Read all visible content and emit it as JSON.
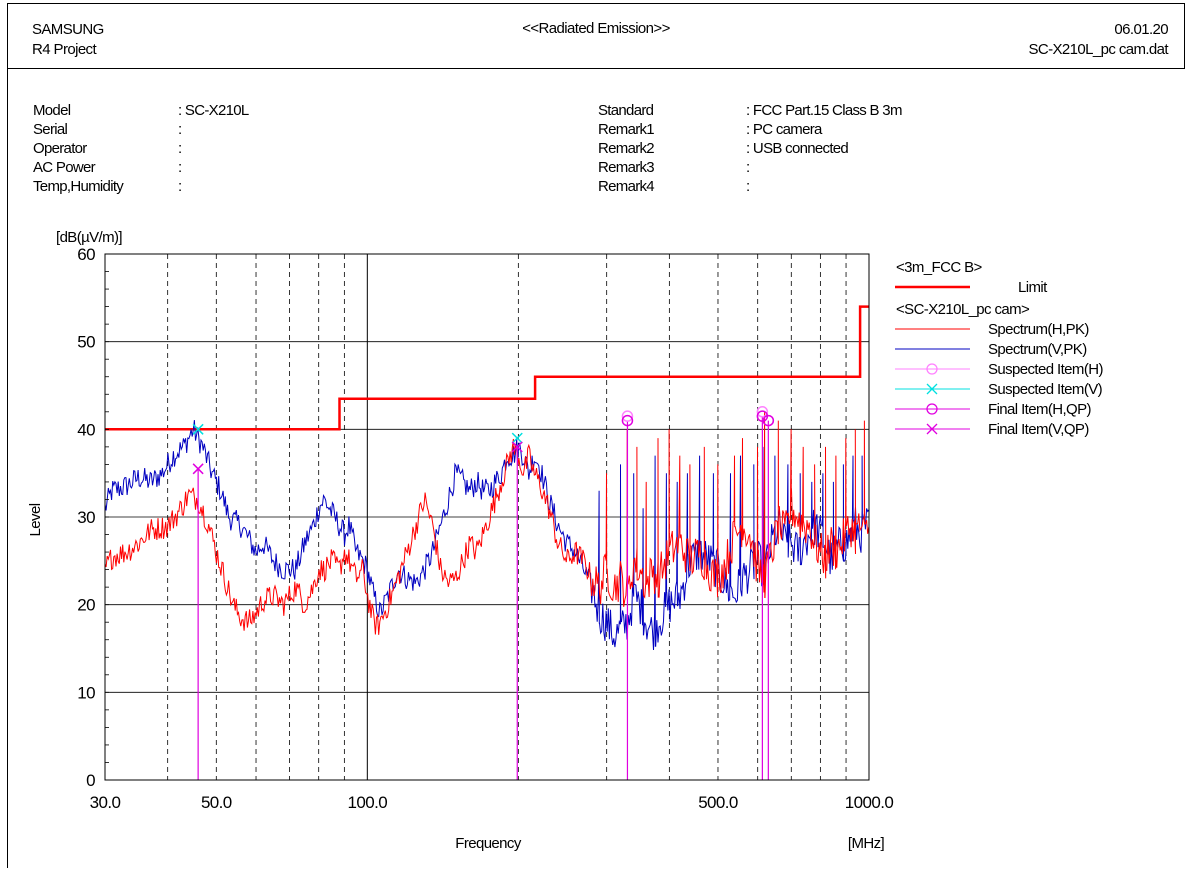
{
  "header": {
    "company": "SAMSUNG",
    "project": "R4 Project",
    "title": "<<Radiated Emission>>",
    "date": "06.01.20",
    "filename": "SC-X210L_pc cam.dat"
  },
  "info_left": [
    {
      "label": "Model",
      "value": ": SC-X210L"
    },
    {
      "label": "Serial",
      "value": ":"
    },
    {
      "label": "Operator",
      "value": ":"
    },
    {
      "label": "AC Power",
      "value": ":"
    },
    {
      "label": "Temp,Humidity",
      "value": ":"
    }
  ],
  "info_right": [
    {
      "label": "Standard",
      "value": ": FCC Part.15 Class B 3m"
    },
    {
      "label": "Remark1",
      "value": ": PC camera"
    },
    {
      "label": "Remark2",
      "value": ": USB connected"
    },
    {
      "label": "Remark3",
      "value": ":"
    },
    {
      "label": "Remark4",
      "value": ":"
    }
  ],
  "chart_data": {
    "type": "line",
    "title": "",
    "xlabel": "Frequency",
    "xunit": "[MHz]",
    "ylabel": "Level",
    "yunit": "[dB(µV/m)]",
    "xscale": "log",
    "xlim": [
      30,
      1000
    ],
    "ylim": [
      0,
      60
    ],
    "xticks": [
      {
        "v": 30,
        "label": "30.0"
      },
      {
        "v": 50,
        "label": "50.0"
      },
      {
        "v": 100,
        "label": "100.0"
      },
      {
        "v": 500,
        "label": "500.0"
      },
      {
        "v": 1000,
        "label": "1000.0"
      }
    ],
    "yticks": [
      {
        "v": 0,
        "label": "0"
      },
      {
        "v": 10,
        "label": "10"
      },
      {
        "v": 20,
        "label": "20"
      },
      {
        "v": 30,
        "label": "30"
      },
      {
        "v": 40,
        "label": "40"
      },
      {
        "v": 50,
        "label": "50"
      },
      {
        "v": 60,
        "label": "60"
      }
    ],
    "grid": true,
    "legend_position": "right",
    "legend_groups": [
      {
        "title": "<3m_FCC B>",
        "entries": [
          "Limit"
        ]
      },
      {
        "title": "<SC-X210L_pc cam>",
        "entries": [
          "Spectrum(H,PK)",
          "Spectrum(V,PK)",
          "Suspected Item(H)",
          "Suspected Item(V)",
          "Final Item(H,QP)",
          "Final Item(V,QP)"
        ]
      }
    ],
    "colors": {
      "limit": "#ff0000",
      "spectrum_h": "#ff0000",
      "spectrum_v": "#0000c0",
      "suspected_h": "#ff80ff",
      "suspected_v": "#00e0e0",
      "final_h": "#e000e0",
      "final_v": "#e000e0"
    },
    "limit": [
      [
        30,
        40
      ],
      [
        88,
        40
      ],
      [
        88,
        43.5
      ],
      [
        216,
        43.5
      ],
      [
        216,
        46
      ],
      [
        960,
        46
      ],
      [
        960,
        54
      ],
      [
        1000,
        54
      ]
    ],
    "spectrum_h": [
      [
        30,
        24
      ],
      [
        31,
        25.5
      ],
      [
        33,
        26
      ],
      [
        35,
        27
      ],
      [
        37,
        28.5
      ],
      [
        40,
        29
      ],
      [
        42,
        30.5
      ],
      [
        44,
        32.5
      ],
      [
        46,
        32
      ],
      [
        48,
        29.5
      ],
      [
        50,
        26
      ],
      [
        52,
        23
      ],
      [
        54,
        20
      ],
      [
        56,
        18.5
      ],
      [
        58,
        18
      ],
      [
        60,
        19
      ],
      [
        62,
        20.5
      ],
      [
        65,
        21
      ],
      [
        68,
        20
      ],
      [
        70,
        21
      ],
      [
        72,
        22
      ],
      [
        75,
        20
      ],
      [
        78,
        22
      ],
      [
        80,
        24
      ],
      [
        82,
        24
      ],
      [
        85,
        25
      ],
      [
        88,
        24
      ],
      [
        90,
        26
      ],
      [
        92,
        25
      ],
      [
        95,
        23
      ],
      [
        98,
        24
      ],
      [
        100,
        21
      ],
      [
        103,
        18
      ],
      [
        105,
        17.5
      ],
      [
        110,
        20
      ],
      [
        115,
        23
      ],
      [
        120,
        26
      ],
      [
        125,
        29
      ],
      [
        130,
        32
      ],
      [
        135,
        29
      ],
      [
        140,
        24
      ],
      [
        145,
        22.5
      ],
      [
        150,
        23
      ],
      [
        155,
        25
      ],
      [
        160,
        27
      ],
      [
        165,
        26
      ],
      [
        170,
        28
      ],
      [
        175,
        30
      ],
      [
        180,
        32
      ],
      [
        185,
        34
      ],
      [
        190,
        36
      ],
      [
        195,
        38
      ],
      [
        200,
        37
      ],
      [
        205,
        35
      ],
      [
        210,
        37
      ],
      [
        215,
        35
      ],
      [
        220,
        34
      ],
      [
        230,
        31
      ],
      [
        240,
        27
      ],
      [
        250,
        25
      ],
      [
        260,
        26
      ],
      [
        270,
        25
      ],
      [
        280,
        23
      ],
      [
        290,
        22
      ],
      [
        300,
        24
      ],
      [
        310,
        22
      ],
      [
        320,
        23
      ],
      [
        330,
        21
      ],
      [
        340,
        25
      ],
      [
        350,
        24
      ],
      [
        360,
        22
      ],
      [
        370,
        24
      ],
      [
        380,
        23
      ],
      [
        400,
        26
      ],
      [
        420,
        27
      ],
      [
        440,
        25
      ],
      [
        460,
        26
      ],
      [
        480,
        24
      ],
      [
        500,
        23
      ],
      [
        520,
        25
      ],
      [
        540,
        28
      ],
      [
        560,
        29
      ],
      [
        580,
        28
      ],
      [
        600,
        24
      ],
      [
        620,
        23
      ],
      [
        640,
        26
      ],
      [
        660,
        29
      ],
      [
        680,
        28
      ],
      [
        700,
        31
      ],
      [
        720,
        30
      ],
      [
        740,
        29
      ],
      [
        760,
        29
      ],
      [
        780,
        27
      ],
      [
        800,
        26
      ],
      [
        820,
        25
      ],
      [
        840,
        27
      ],
      [
        860,
        26
      ],
      [
        880,
        27
      ],
      [
        900,
        28
      ],
      [
        920,
        29
      ],
      [
        940,
        28
      ],
      [
        960,
        29
      ],
      [
        980,
        28
      ],
      [
        1000,
        29
      ]
    ],
    "spectrum_v": [
      [
        30,
        31
      ],
      [
        31,
        33
      ],
      [
        33,
        33.5
      ],
      [
        35,
        34.5
      ],
      [
        37,
        34
      ],
      [
        39,
        35
      ],
      [
        41,
        37
      ],
      [
        43,
        38
      ],
      [
        45,
        40
      ],
      [
        46,
        39
      ],
      [
        47,
        38
      ],
      [
        49,
        35
      ],
      [
        51,
        33
      ],
      [
        53,
        30
      ],
      [
        56,
        29
      ],
      [
        60,
        26
      ],
      [
        62,
        27
      ],
      [
        65,
        25
      ],
      [
        68,
        24
      ],
      [
        72,
        24
      ],
      [
        75,
        27
      ],
      [
        78,
        29
      ],
      [
        80,
        31
      ],
      [
        82,
        32
      ],
      [
        84,
        31
      ],
      [
        86,
        30
      ],
      [
        88,
        29
      ],
      [
        90,
        28
      ],
      [
        92,
        29
      ],
      [
        95,
        26
      ],
      [
        98,
        25
      ],
      [
        100,
        24
      ],
      [
        103,
        21
      ],
      [
        106,
        19
      ],
      [
        110,
        21
      ],
      [
        115,
        24
      ],
      [
        120,
        23
      ],
      [
        125,
        22.5
      ],
      [
        130,
        24
      ],
      [
        135,
        26
      ],
      [
        140,
        29
      ],
      [
        145,
        32
      ],
      [
        150,
        35
      ],
      [
        155,
        34
      ],
      [
        160,
        33
      ],
      [
        165,
        34
      ],
      [
        170,
        33
      ],
      [
        175,
        33
      ],
      [
        180,
        34
      ],
      [
        185,
        35
      ],
      [
        190,
        37
      ],
      [
        195,
        37
      ],
      [
        200,
        38
      ],
      [
        205,
        37
      ],
      [
        210,
        35
      ],
      [
        215,
        37
      ],
      [
        220,
        36
      ],
      [
        230,
        32
      ],
      [
        240,
        29
      ],
      [
        250,
        27
      ],
      [
        260,
        26
      ],
      [
        270,
        24
      ],
      [
        280,
        22
      ],
      [
        290,
        19
      ],
      [
        300,
        18
      ],
      [
        310,
        16.5
      ],
      [
        320,
        17
      ],
      [
        330,
        18
      ],
      [
        340,
        21
      ],
      [
        350,
        20
      ],
      [
        360,
        18
      ],
      [
        370,
        17
      ],
      [
        380,
        18
      ],
      [
        400,
        20
      ],
      [
        420,
        21
      ],
      [
        440,
        25
      ],
      [
        460,
        26
      ],
      [
        480,
        25
      ],
      [
        500,
        24
      ],
      [
        520,
        22
      ],
      [
        540,
        21
      ],
      [
        560,
        23
      ],
      [
        580,
        24
      ],
      [
        600,
        25
      ],
      [
        620,
        24
      ],
      [
        640,
        27
      ],
      [
        660,
        29
      ],
      [
        680,
        27
      ],
      [
        700,
        27
      ],
      [
        720,
        26
      ],
      [
        740,
        27
      ],
      [
        760,
        28
      ],
      [
        780,
        29
      ],
      [
        800,
        28
      ],
      [
        820,
        27
      ],
      [
        840,
        25
      ],
      [
        860,
        26
      ],
      [
        880,
        27
      ],
      [
        900,
        27
      ],
      [
        920,
        28
      ],
      [
        940,
        29
      ],
      [
        960,
        28
      ],
      [
        980,
        29
      ],
      [
        1000,
        29
      ]
    ],
    "spikes_h": [
      [
        300,
        35
      ],
      [
        330,
        40
      ],
      [
        345,
        38
      ],
      [
        360,
        34
      ],
      [
        380,
        39
      ],
      [
        400,
        40
      ],
      [
        420,
        37
      ],
      [
        440,
        36
      ],
      [
        470,
        38
      ],
      [
        500,
        36
      ],
      [
        540,
        37
      ],
      [
        560,
        39
      ],
      [
        600,
        38
      ],
      [
        620,
        42
      ],
      [
        660,
        41
      ],
      [
        700,
        40
      ],
      [
        740,
        38
      ],
      [
        780,
        36
      ],
      [
        820,
        38
      ],
      [
        860,
        37
      ],
      [
        900,
        39
      ],
      [
        940,
        40
      ],
      [
        980,
        41
      ]
    ],
    "spikes_v": [
      [
        290,
        33
      ],
      [
        320,
        36
      ],
      [
        340,
        35
      ],
      [
        355,
        31
      ],
      [
        375,
        37
      ],
      [
        395,
        35
      ],
      [
        415,
        34
      ],
      [
        435,
        35
      ],
      [
        460,
        37
      ],
      [
        490,
        35
      ],
      [
        530,
        35
      ],
      [
        555,
        37
      ],
      [
        590,
        36
      ],
      [
        615,
        38
      ],
      [
        650,
        37
      ],
      [
        690,
        36
      ],
      [
        730,
        35
      ],
      [
        770,
        34
      ],
      [
        810,
        35
      ],
      [
        850,
        34
      ],
      [
        890,
        36
      ],
      [
        930,
        37
      ],
      [
        970,
        37
      ]
    ],
    "suspected_h": [
      [
        330,
        41.5
      ],
      [
        613,
        42
      ],
      [
        630,
        41
      ]
    ],
    "suspected_v": [
      [
        46,
        40
      ],
      [
        199,
        39
      ]
    ],
    "final_h": [
      [
        330,
        41
      ],
      [
        613,
        41.5
      ],
      [
        630,
        41
      ]
    ],
    "final_v": [
      [
        46,
        35.5
      ],
      [
        199,
        38
      ]
    ]
  }
}
